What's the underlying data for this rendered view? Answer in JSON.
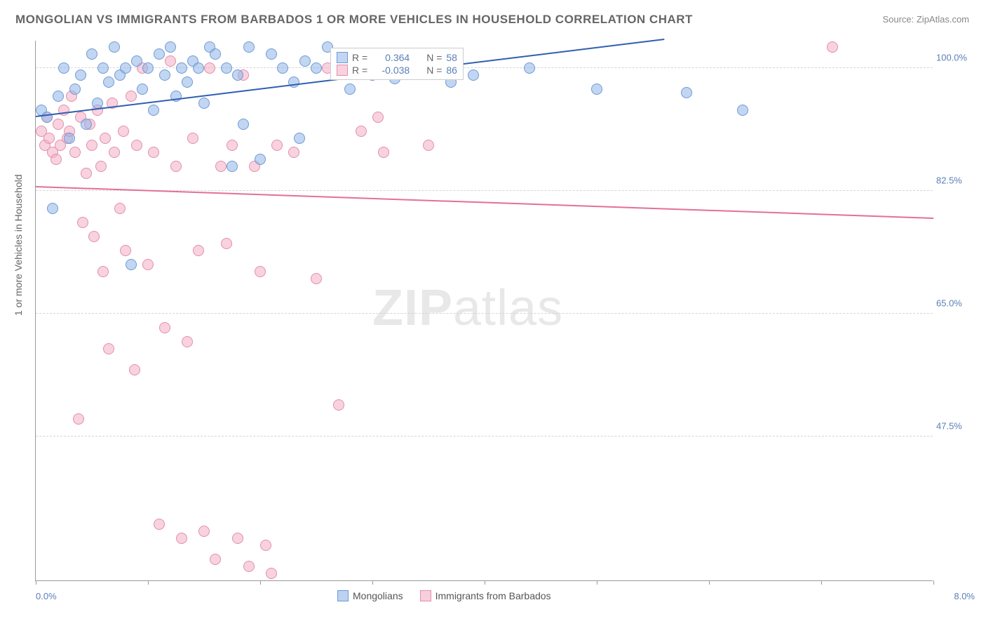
{
  "title": "MONGOLIAN VS IMMIGRANTS FROM BARBADOS 1 OR MORE VEHICLES IN HOUSEHOLD CORRELATION CHART",
  "source": "Source: ZipAtlas.com",
  "ylabel": "1 or more Vehicles in Household",
  "watermark_a": "ZIP",
  "watermark_b": "atlas",
  "chart": {
    "type": "scatter",
    "xlim": [
      0.0,
      8.0
    ],
    "ylim": [
      27.0,
      104.0
    ],
    "xticks": [
      0,
      1,
      2,
      3,
      4,
      5,
      6,
      7,
      8
    ],
    "xlabel_min": "0.0%",
    "xlabel_max": "8.0%",
    "yticks": [
      47.5,
      65.0,
      82.5,
      100.0
    ],
    "ytick_labels": [
      "47.5%",
      "65.0%",
      "82.5%",
      "100.0%"
    ],
    "background_color": "#ffffff",
    "grid_color": "#d5d5d5",
    "axis_color": "#999999",
    "label_color": "#5b7fb8",
    "title_color": "#666666",
    "marker_radius": 8,
    "series": [
      {
        "name": "Mongolians",
        "color_fill": "rgba(144,180,232,0.55)",
        "color_stroke": "#6d9ad6",
        "r_label": "R =",
        "r_value": "0.364",
        "n_label": "N =",
        "n_value": "58",
        "trend": {
          "x1": 0.0,
          "y1": 93.0,
          "x2": 5.6,
          "y2": 104.0,
          "color": "#2f5fb0",
          "width": 2
        },
        "points": [
          [
            0.05,
            94
          ],
          [
            0.1,
            93
          ],
          [
            0.15,
            80
          ],
          [
            0.2,
            96
          ],
          [
            0.25,
            100
          ],
          [
            0.3,
            90
          ],
          [
            0.35,
            97
          ],
          [
            0.4,
            99
          ],
          [
            0.45,
            92
          ],
          [
            0.5,
            102
          ],
          [
            0.55,
            95
          ],
          [
            0.6,
            100
          ],
          [
            0.65,
            98
          ],
          [
            0.7,
            103
          ],
          [
            0.75,
            99
          ],
          [
            0.8,
            100
          ],
          [
            0.85,
            72
          ],
          [
            0.9,
            101
          ],
          [
            0.95,
            97
          ],
          [
            1.0,
            100
          ],
          [
            1.05,
            94
          ],
          [
            1.1,
            102
          ],
          [
            1.15,
            99
          ],
          [
            1.2,
            103
          ],
          [
            1.25,
            96
          ],
          [
            1.3,
            100
          ],
          [
            1.35,
            98
          ],
          [
            1.4,
            101
          ],
          [
            1.45,
            100
          ],
          [
            1.5,
            95
          ],
          [
            1.55,
            103
          ],
          [
            1.6,
            102
          ],
          [
            1.7,
            100
          ],
          [
            1.75,
            86
          ],
          [
            1.8,
            99
          ],
          [
            1.85,
            92
          ],
          [
            1.9,
            103
          ],
          [
            2.0,
            87
          ],
          [
            2.1,
            102
          ],
          [
            2.2,
            100
          ],
          [
            2.3,
            98
          ],
          [
            2.35,
            90
          ],
          [
            2.4,
            101
          ],
          [
            2.5,
            100
          ],
          [
            2.6,
            103
          ],
          [
            2.8,
            97
          ],
          [
            3.0,
            99
          ],
          [
            3.1,
            100.5
          ],
          [
            3.2,
            98.5
          ],
          [
            3.4,
            100
          ],
          [
            3.6,
            99.5
          ],
          [
            3.7,
            98
          ],
          [
            3.9,
            99
          ],
          [
            4.4,
            100
          ],
          [
            5.0,
            97
          ],
          [
            5.8,
            96.5
          ],
          [
            6.3,
            94
          ]
        ]
      },
      {
        "name": "Immigrants from Barbados",
        "color_fill": "rgba(244,173,197,0.55)",
        "color_stroke": "#e28fa9",
        "r_label": "R =",
        "r_value": "-0.038",
        "n_label": "N =",
        "n_value": "86",
        "trend": {
          "x1": 0.0,
          "y1": 83.0,
          "x2": 8.0,
          "y2": 78.5,
          "color": "#e56f97",
          "width": 2
        },
        "points": [
          [
            0.05,
            91
          ],
          [
            0.08,
            89
          ],
          [
            0.1,
            93
          ],
          [
            0.12,
            90
          ],
          [
            0.15,
            88
          ],
          [
            0.18,
            87
          ],
          [
            0.2,
            92
          ],
          [
            0.22,
            89
          ],
          [
            0.25,
            94
          ],
          [
            0.28,
            90
          ],
          [
            0.3,
            91
          ],
          [
            0.32,
            96
          ],
          [
            0.35,
            88
          ],
          [
            0.38,
            50
          ],
          [
            0.4,
            93
          ],
          [
            0.42,
            78
          ],
          [
            0.45,
            85
          ],
          [
            0.48,
            92
          ],
          [
            0.5,
            89
          ],
          [
            0.52,
            76
          ],
          [
            0.55,
            94
          ],
          [
            0.58,
            86
          ],
          [
            0.6,
            71
          ],
          [
            0.62,
            90
          ],
          [
            0.65,
            60
          ],
          [
            0.68,
            95
          ],
          [
            0.7,
            88
          ],
          [
            0.75,
            80
          ],
          [
            0.78,
            91
          ],
          [
            0.8,
            74
          ],
          [
            0.85,
            96
          ],
          [
            0.88,
            57
          ],
          [
            0.9,
            89
          ],
          [
            0.95,
            100
          ],
          [
            1.0,
            72
          ],
          [
            1.05,
            88
          ],
          [
            1.1,
            35
          ],
          [
            1.15,
            63
          ],
          [
            1.2,
            101
          ],
          [
            1.25,
            86
          ],
          [
            1.3,
            33
          ],
          [
            1.35,
            61
          ],
          [
            1.4,
            90
          ],
          [
            1.45,
            74
          ],
          [
            1.5,
            34
          ],
          [
            1.55,
            100
          ],
          [
            1.6,
            30
          ],
          [
            1.65,
            86
          ],
          [
            1.7,
            75
          ],
          [
            1.75,
            89
          ],
          [
            1.8,
            33
          ],
          [
            1.85,
            99
          ],
          [
            1.9,
            29
          ],
          [
            1.95,
            86
          ],
          [
            2.0,
            71
          ],
          [
            2.05,
            32
          ],
          [
            2.1,
            28
          ],
          [
            2.15,
            89
          ],
          [
            2.3,
            88
          ],
          [
            2.5,
            70
          ],
          [
            2.6,
            100
          ],
          [
            2.7,
            52
          ],
          [
            2.9,
            91
          ],
          [
            3.05,
            93
          ],
          [
            3.1,
            88
          ],
          [
            3.5,
            89
          ],
          [
            7.1,
            103
          ]
        ]
      }
    ]
  },
  "legend_bottom": [
    {
      "swatch_fill": "rgba(144,180,232,0.6)",
      "swatch_stroke": "#6d9ad6",
      "label": "Mongolians"
    },
    {
      "swatch_fill": "rgba(244,173,197,0.6)",
      "swatch_stroke": "#e28fa9",
      "label": "Immigrants from Barbados"
    }
  ]
}
